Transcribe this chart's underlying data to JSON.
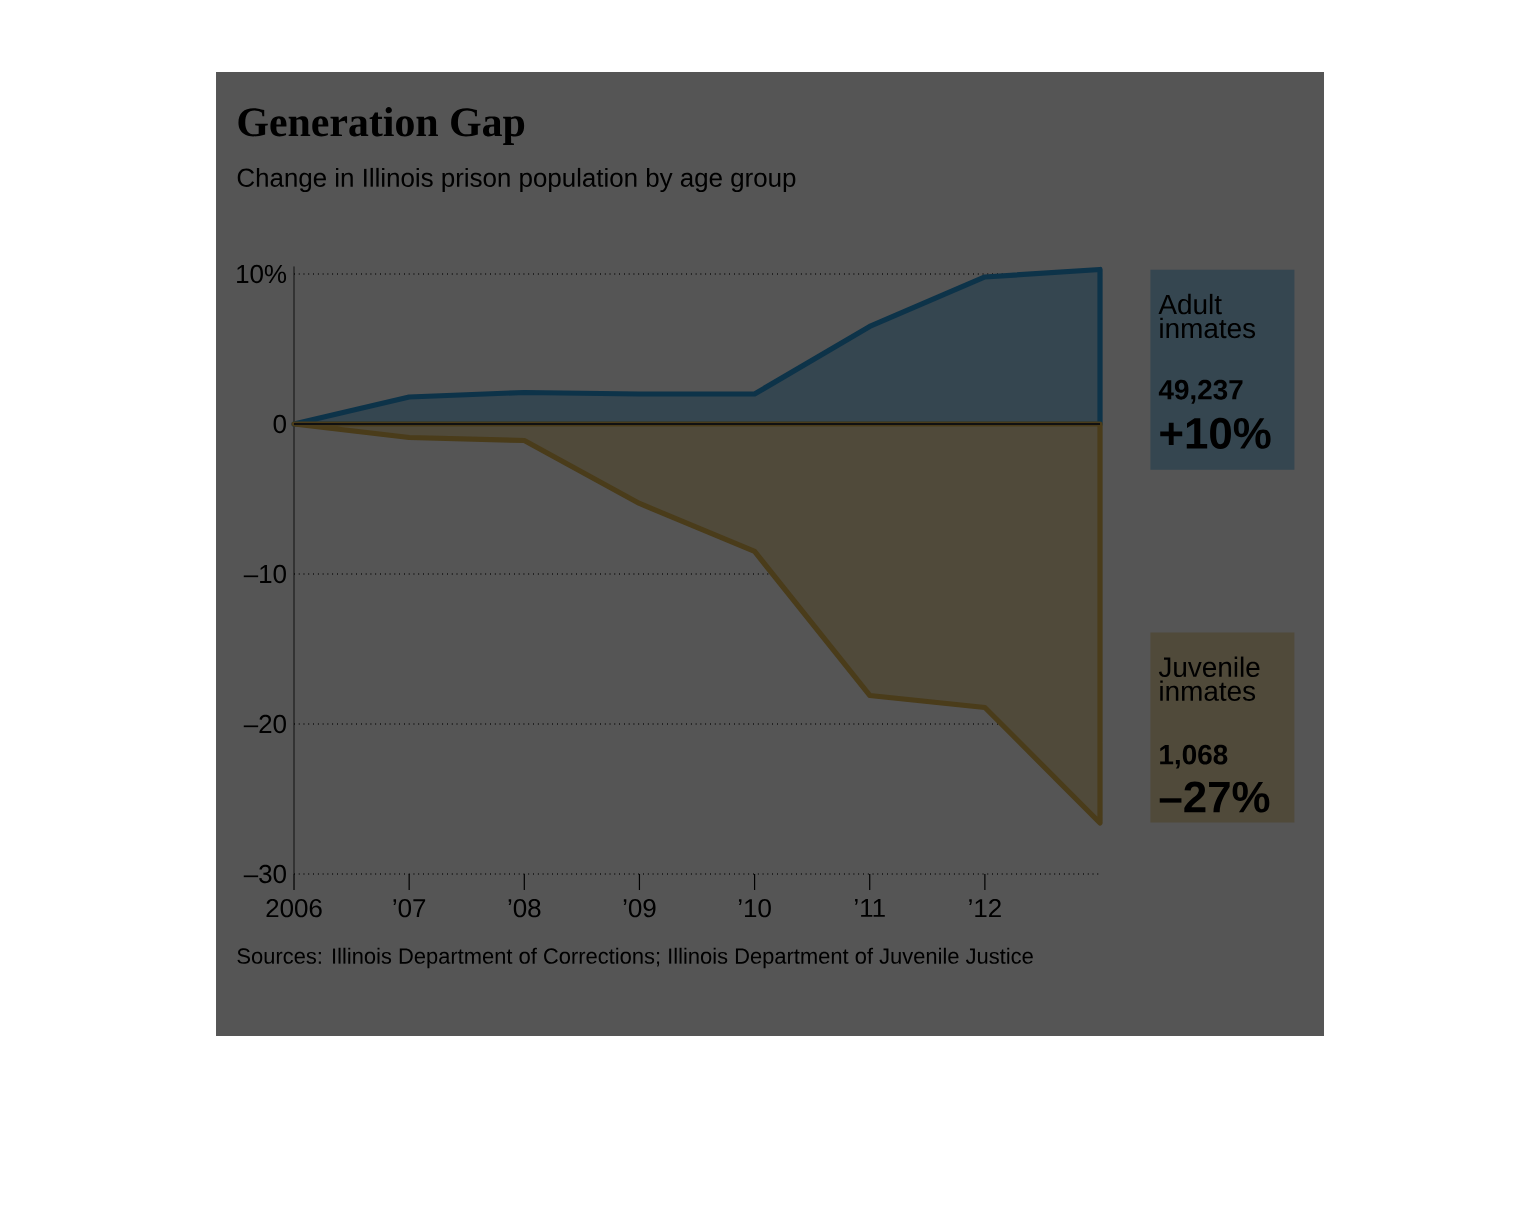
{
  "chart_data": {
    "type": "area",
    "title": "Generation Gap",
    "subtitle": "Change in Illinois prison population by age group",
    "x": [
      2006,
      2007,
      2008,
      2009,
      2010,
      2011,
      2012,
      2013
    ],
    "series": [
      {
        "name": "Adult inmates",
        "color": "#0d3349",
        "values": [
          0,
          1.8,
          2.1,
          2.0,
          2.0,
          6.5,
          9.8,
          10.3
        ]
      },
      {
        "name": "Juvenile inmates",
        "color": "#4a3c1a",
        "values": [
          0,
          -0.9,
          -1.1,
          -5.3,
          -8.5,
          -18.1,
          -18.9,
          -26.6
        ]
      }
    ],
    "xlim": [
      2006,
      2013
    ],
    "xticks": [
      {
        "value": 2006,
        "label": "2006"
      },
      {
        "value": 2007,
        "label": "’07"
      },
      {
        "value": 2008,
        "label": "’08"
      },
      {
        "value": 2009,
        "label": "’09"
      },
      {
        "value": 2010,
        "label": "’10"
      },
      {
        "value": 2011,
        "label": "’11"
      },
      {
        "value": 2012,
        "label": "’12"
      }
    ],
    "ylim": [
      -30,
      10.5
    ],
    "yticks": [
      {
        "value": 10,
        "label": "10%"
      },
      0,
      {
        "value": -10,
        "label": "–10"
      },
      {
        "value": -20,
        "label": "–20"
      },
      {
        "value": -30,
        "label": "–30"
      }
    ],
    "grid": "y",
    "ref_lines": [
      {
        "axis": "y",
        "value": 0,
        "color": "#111111"
      }
    ],
    "annotations": [
      "49,237",
      "+10%",
      "1,068",
      "–27%",
      "Sources: Illinois Department of Corrections; Illinois Department of Juvenile Justice"
    ]
  }
}
